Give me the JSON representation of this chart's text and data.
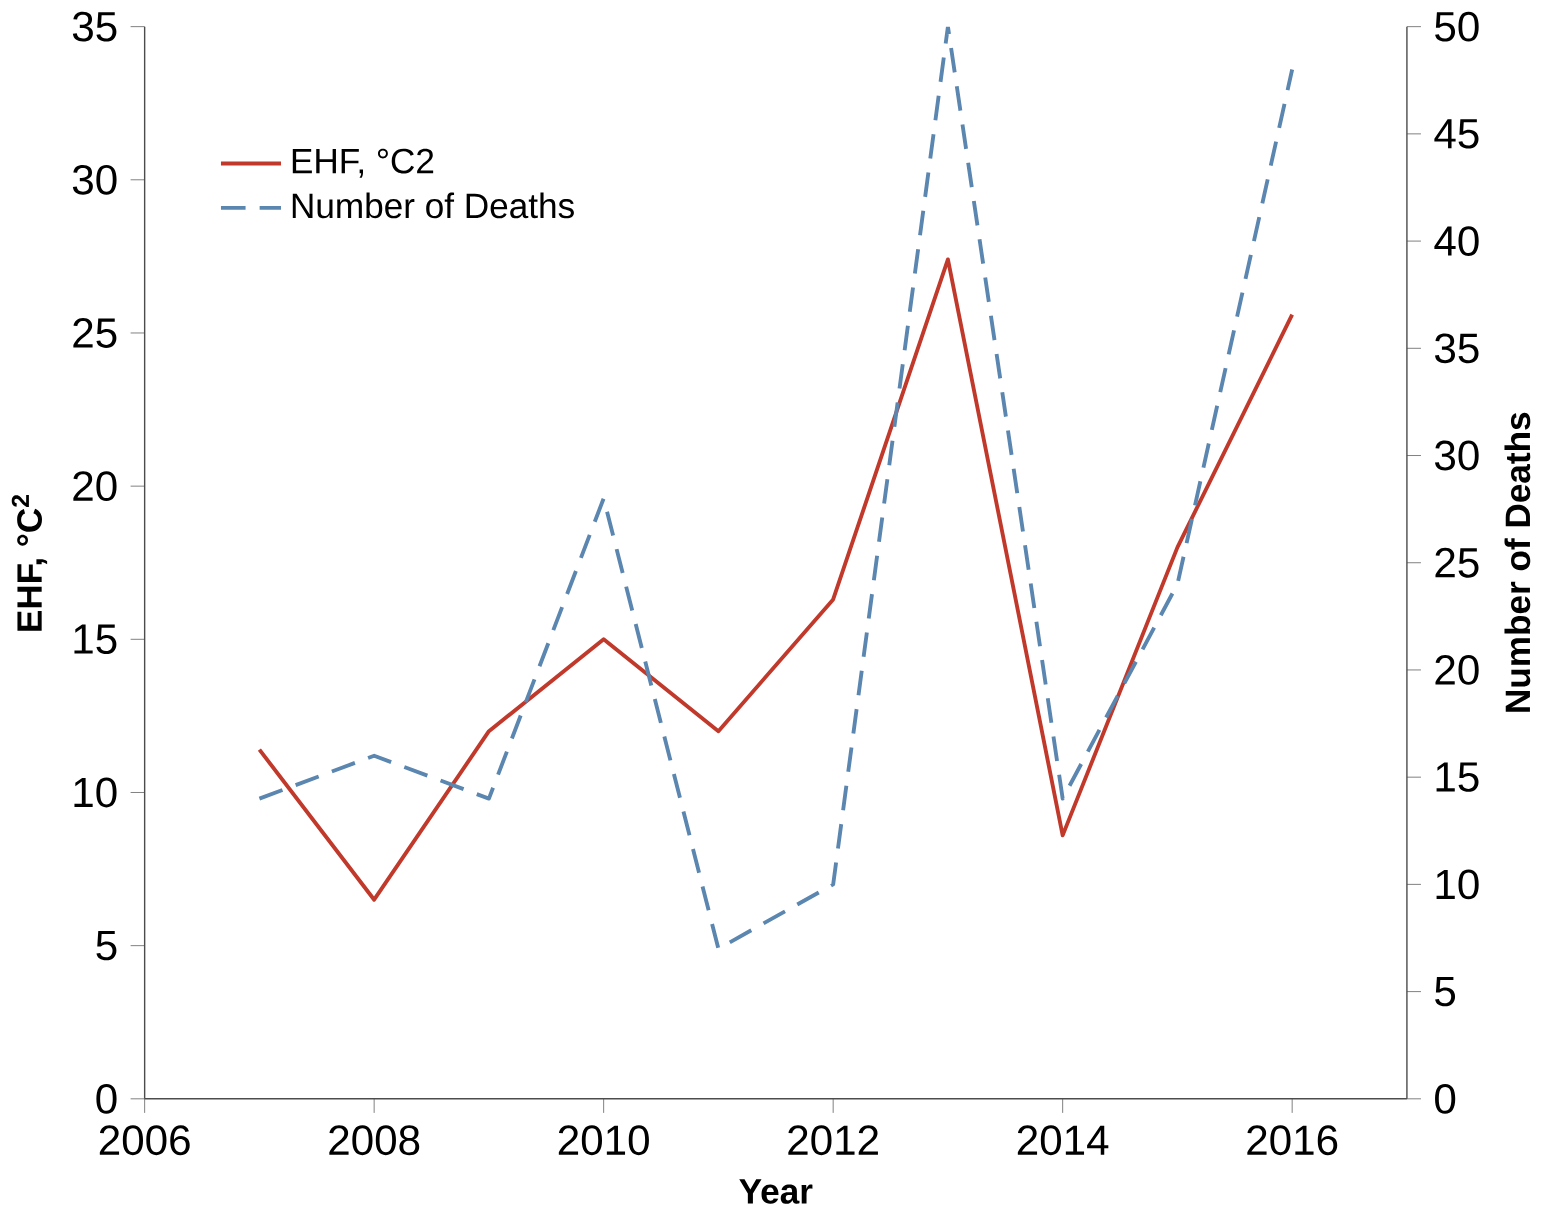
{
  "chart_data": {
    "type": "line",
    "xlabel": "Year",
    "ylabel": "EHF, °C$^{2}$",
    "y2label": "Number of Deaths",
    "x": [
      2007,
      2008,
      2009,
      2010,
      2011,
      2012,
      2013,
      2014,
      2015,
      2016
    ],
    "series": [
      {
        "name": "EHF, °C2",
        "color": "#c0392b",
        "line_style": "solid",
        "values": [
          11.4,
          6.5,
          12,
          15,
          12,
          16.3,
          27.4,
          8.6,
          18,
          25.6
        ]
      },
      {
        "name": "Number of Deaths",
        "color": "#5b86b0",
        "line_style": "dashed",
        "axis": "y2",
        "values": [
          14,
          16,
          14,
          28,
          7,
          10,
          50,
          14,
          24,
          48
        ]
      }
    ],
    "xlim": [
      2006,
      2017
    ],
    "xticks": [
      2006,
      2008,
      2010,
      2012,
      2014,
      2016
    ],
    "ylim": [
      0,
      35
    ],
    "yticks": [
      0,
      5,
      10,
      15,
      20,
      25,
      30,
      35
    ],
    "y2lim": [
      0,
      50
    ],
    "y2ticks": [
      0,
      5,
      10,
      15,
      20,
      25,
      30,
      35,
      40,
      45,
      50
    ],
    "legend": "top left",
    "grid": false,
    "marker": "none"
  }
}
